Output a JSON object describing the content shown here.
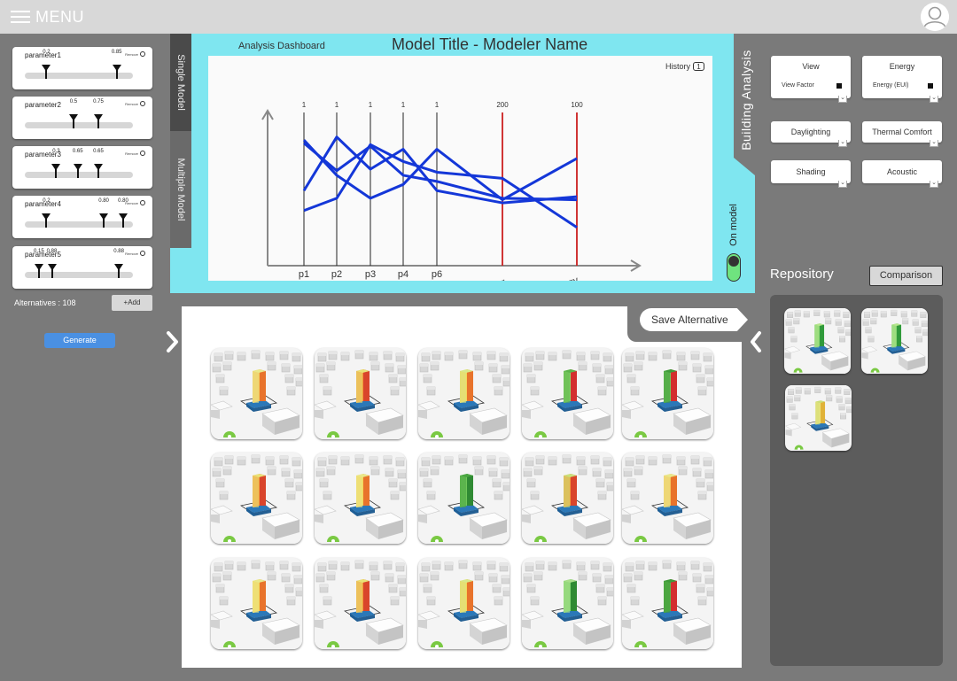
{
  "topbar": {
    "menu_label": "MENU"
  },
  "left_panel": {
    "parameters": [
      {
        "name": "parameter1",
        "remove_label": "Remove",
        "values": [
          {
            "label": "0.2",
            "pos": 0.2
          },
          {
            "label": "0.85",
            "pos": 0.85
          }
        ]
      },
      {
        "name": "parameter2",
        "remove_label": "Remove",
        "values": [
          {
            "label": "0.5",
            "pos": 0.45
          },
          {
            "label": "0.75",
            "pos": 0.68
          }
        ]
      },
      {
        "name": "parameter3",
        "remove_label": "Remove",
        "values": [
          {
            "label": "0.3",
            "pos": 0.29
          },
          {
            "label": "0.65",
            "pos": 0.49
          },
          {
            "label": "0.65",
            "pos": 0.68
          }
        ]
      },
      {
        "name": "parameter4",
        "remove_label": "Remove",
        "values": [
          {
            "label": "0.2",
            "pos": 0.2
          },
          {
            "label": "0.80",
            "pos": 0.73
          },
          {
            "label": "0.80",
            "pos": 0.91
          }
        ]
      },
      {
        "name": "parameter5",
        "remove_label": "Remove",
        "values": [
          {
            "label": "0.15",
            "pos": 0.13
          },
          {
            "label": "0.88",
            "pos": 0.25
          },
          {
            "label": "0.88",
            "pos": 0.87
          }
        ]
      }
    ],
    "alternatives_label": "Alternatives : 108",
    "add_label": "+Add",
    "generate_label": "Generate"
  },
  "tabs": {
    "single": "Single Model",
    "multiple": "Multiple Model"
  },
  "dashboard": {
    "label": "Analysis Dashboard",
    "title": "Model Title - Modeler Name",
    "history_label": "History",
    "history_count": "1",
    "on_model_label": "On model",
    "chart_data": {
      "type": "parallel-coordinates",
      "axes": [
        "p1",
        "p2",
        "p3",
        "p4",
        "p6",
        "View Factor",
        "Energy"
      ],
      "axis_max_labels": [
        "1",
        "1",
        "1",
        "1",
        "1",
        "200",
        "100"
      ],
      "series": [
        {
          "values": [
            0.82,
            0.59,
            0.44,
            0.53,
            0.76,
            0.43,
            0.7
          ]
        },
        {
          "values": [
            0.49,
            0.84,
            0.63,
            0.76,
            0.49,
            0.41,
            0.45
          ]
        },
        {
          "values": [
            0.36,
            0.44,
            0.79,
            0.68,
            0.61,
            0.57,
            0.25
          ]
        },
        {
          "values": [
            0.8,
            0.62,
            0.78,
            0.59,
            0.55,
            0.44,
            0.43
          ]
        }
      ],
      "colors": {
        "axis": "#222222",
        "highlight_axis": "#cc1f1f",
        "line": "#1437d8"
      }
    }
  },
  "building_analysis": {
    "title": "Building Analysis",
    "options": [
      {
        "label": "View",
        "sub": "View Factor"
      },
      {
        "label": "Energy",
        "sub": "Energy (EUI)"
      },
      {
        "label": "Daylighting",
        "sub": ""
      },
      {
        "label": "Thermal Comfort",
        "sub": ""
      },
      {
        "label": "Shading",
        "sub": ""
      },
      {
        "label": "Acoustic",
        "sub": ""
      }
    ]
  },
  "repository": {
    "title": "Repository",
    "comparison_label": "Comparison",
    "items": [
      {
        "tower_colors": [
          "#2f9a3a",
          "#7fd36f",
          "#b8e68e"
        ]
      },
      {
        "tower_colors": [
          "#2f9a3a",
          "#7fd36f",
          "#b8e68e"
        ]
      },
      {
        "tower_colors": [
          "#e0b238",
          "#f5e27a",
          "#c9de7a"
        ]
      }
    ]
  },
  "gallery": {
    "save_label": "Save Alternative",
    "items": [
      {
        "tower_colors": [
          "#e8732b",
          "#f3c45b",
          "#e9e88a"
        ]
      },
      {
        "tower_colors": [
          "#d9452b",
          "#f19a3a",
          "#e8e276"
        ]
      },
      {
        "tower_colors": [
          "#e8732b",
          "#f3d65b",
          "#d8e889"
        ]
      },
      {
        "tower_colors": [
          "#d32f2f",
          "#8bd66b",
          "#5bb34b"
        ]
      },
      {
        "tower_colors": [
          "#d32f2f",
          "#6fc65b",
          "#3f9a3a"
        ]
      },
      {
        "tower_colors": [
          "#d9452b",
          "#f19a3a",
          "#e9e276"
        ]
      },
      {
        "tower_colors": [
          "#e8732b",
          "#f3d65b",
          "#e9e88a"
        ]
      },
      {
        "tower_colors": [
          "#2f8a33",
          "#6fc65b",
          "#4aa641"
        ]
      },
      {
        "tower_colors": [
          "#d9452b",
          "#f19a3a",
          "#c9e27a"
        ]
      },
      {
        "tower_colors": [
          "#e8732b",
          "#f3c45b",
          "#e9e88a"
        ]
      },
      {
        "tower_colors": [
          "#e8732b",
          "#f3d65b",
          "#e9e88a"
        ]
      },
      {
        "tower_colors": [
          "#d9452b",
          "#f19a3a",
          "#e9e276"
        ]
      },
      {
        "tower_colors": [
          "#e8732b",
          "#f3d65b",
          "#d8e889"
        ]
      },
      {
        "tower_colors": [
          "#2f8a33",
          "#7fd36f",
          "#a9de8b"
        ]
      },
      {
        "tower_colors": [
          "#d32f2f",
          "#5bb34b",
          "#3f9a3a"
        ]
      }
    ]
  }
}
